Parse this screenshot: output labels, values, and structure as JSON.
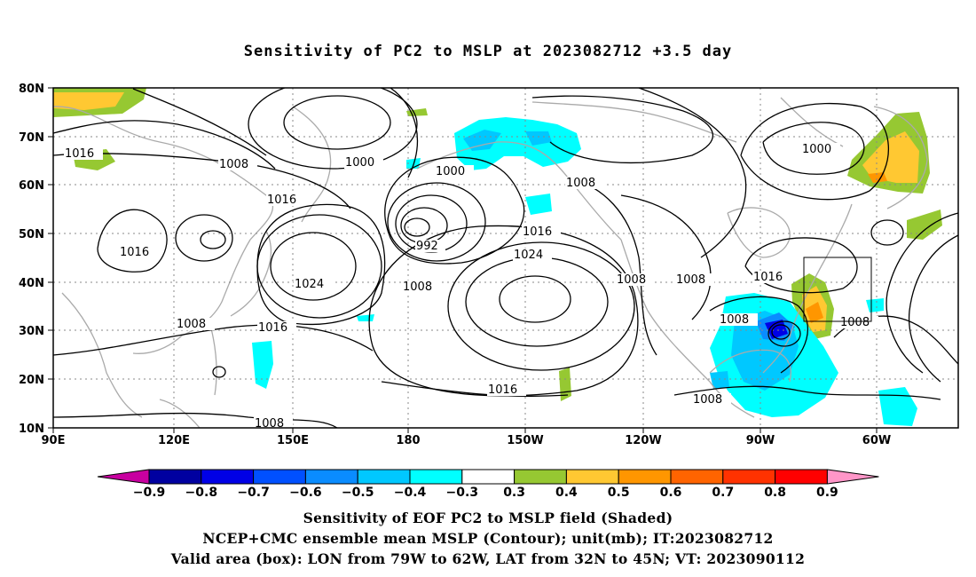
{
  "title": "Sensitivity of PC2 to MSLP at 2023082712 +3.5 day",
  "map": {
    "lat_labels": [
      "80N",
      "70N",
      "60N",
      "50N",
      "40N",
      "30N",
      "20N",
      "10N"
    ],
    "lon_labels": [
      "90E",
      "120E",
      "150E",
      "180",
      "150W",
      "120W",
      "90W",
      "60W"
    ],
    "valid_box": {
      "lon_range": [
        "79W",
        "62W"
      ],
      "lat_range": [
        "32N",
        "45N"
      ]
    },
    "isobar_labels": [
      {
        "text": "1016",
        "id": "a"
      },
      {
        "text": "1008",
        "id": "b"
      },
      {
        "text": "1000",
        "id": "c"
      },
      {
        "text": "1000",
        "id": "d"
      },
      {
        "text": "1008",
        "id": "e"
      },
      {
        "text": "1000",
        "id": "f"
      },
      {
        "text": "1016",
        "id": "g"
      },
      {
        "text": "1016",
        "id": "h"
      },
      {
        "text": "992",
        "id": "i"
      },
      {
        "text": "1016",
        "id": "j"
      },
      {
        "text": "1024",
        "id": "k"
      },
      {
        "text": "1024",
        "id": "l"
      },
      {
        "text": "1008",
        "id": "m"
      },
      {
        "text": "1008",
        "id": "n"
      },
      {
        "text": "1008",
        "id": "o"
      },
      {
        "text": "1016",
        "id": "p"
      },
      {
        "text": "1008",
        "id": "q"
      },
      {
        "text": "1016",
        "id": "r"
      },
      {
        "text": "1008",
        "id": "s"
      },
      {
        "text": "1008",
        "id": "t"
      },
      {
        "text": "1016",
        "id": "u"
      },
      {
        "text": "1008",
        "id": "v"
      },
      {
        "text": "1008",
        "id": "w"
      }
    ]
  },
  "colorbar": {
    "labels": [
      "-0.9",
      "-0.8",
      "-0.7",
      "-0.6",
      "-0.5",
      "-0.4",
      "-0.3",
      "0.3",
      "0.4",
      "0.5",
      "0.6",
      "0.7",
      "0.8",
      "0.9"
    ],
    "colors": [
      "#0000a0",
      "#0000e6",
      "#0050ff",
      "#0a8cff",
      "#00c8ff",
      "#00ffff",
      "#ffffff",
      "#96c832",
      "#ffc832",
      "#ff9600",
      "#ff6400",
      "#ff3200",
      "#ff0000"
    ],
    "low_end_color": "#c800a0",
    "high_end_color": "#ff96c8"
  },
  "caption": {
    "line1": "Sensitivity of EOF PC2 to MSLP field (Shaded)",
    "line2": "NCEP+CMC ensemble mean MSLP (Contour); unit(mb); IT:2023082712",
    "line3": "Valid area (box): LON from 79W to 62W, LAT from 32N to 45N; VT: 2023090112"
  }
}
